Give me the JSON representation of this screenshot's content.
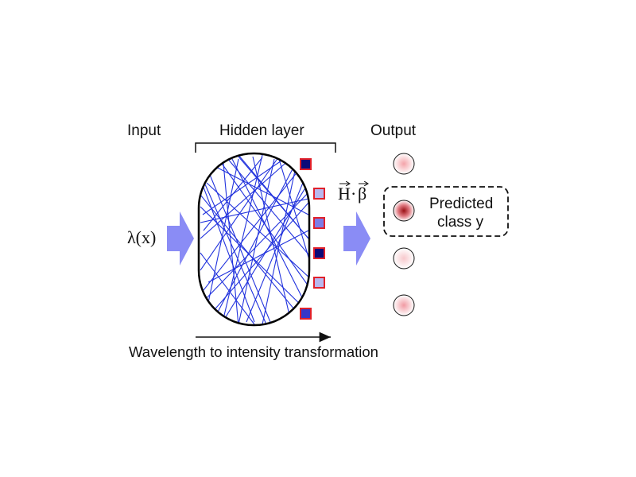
{
  "labels": {
    "input": "Input",
    "hidden": "Hidden layer",
    "output": "Output",
    "lambda": "λ(x)",
    "weights_H": "H",
    "weights_dot": "·",
    "weights_beta": "β",
    "predicted_line1": "Predicted",
    "predicted_line2": "class y",
    "bottom": "Wavelength to intensity transformation"
  },
  "colors": {
    "arrow_fill": "#8a8cf5",
    "scatter_lines": "#2233dd",
    "node_border": "#e0202a",
    "node_fills": [
      "#0a0a78",
      "#b8b8ee",
      "#7c7ce6",
      "#0a0a78",
      "#b8b8ee",
      "#3636c8"
    ],
    "output_glow": [
      "#f4a3a9",
      "#b42126",
      "#f7c8cc",
      "#f19aa3"
    ]
  },
  "icons": {
    "input_arrow": "block-arrow-right-icon",
    "output_arrow": "block-arrow-right-icon",
    "bottom_arrow": "long-arrow-right-icon",
    "vector_arrow": "vector-arrow-icon"
  }
}
